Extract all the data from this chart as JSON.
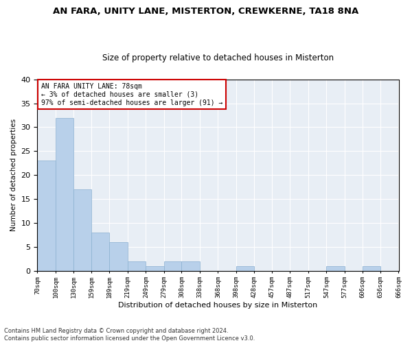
{
  "title1": "AN FARA, UNITY LANE, MISTERTON, CREWKERNE, TA18 8NA",
  "title2": "Size of property relative to detached houses in Misterton",
  "xlabel": "Distribution of detached houses by size in Misterton",
  "ylabel": "Number of detached properties",
  "bar_values": [
    23,
    32,
    17,
    8,
    6,
    2,
    1,
    2,
    2,
    0,
    0,
    1,
    0,
    0,
    0,
    0,
    1,
    0,
    1,
    0
  ],
  "bin_labels": [
    "70sqm",
    "100sqm",
    "130sqm",
    "159sqm",
    "189sqm",
    "219sqm",
    "249sqm",
    "279sqm",
    "308sqm",
    "338sqm",
    "368sqm",
    "398sqm",
    "428sqm",
    "457sqm",
    "487sqm",
    "517sqm",
    "547sqm",
    "577sqm",
    "606sqm",
    "636sqm",
    "666sqm"
  ],
  "bar_color": "#b8d0ea",
  "bar_edge_color": "#8ab0d0",
  "annotation_box_color": "#cc0000",
  "annotation_text": "AN FARA UNITY LANE: 78sqm\n← 3% of detached houses are smaller (3)\n97% of semi-detached houses are larger (91) →",
  "highlight_bar_color": "#cc0000",
  "ylim": [
    0,
    40
  ],
  "yticks": [
    0,
    5,
    10,
    15,
    20,
    25,
    30,
    35,
    40
  ],
  "footer": "Contains HM Land Registry data © Crown copyright and database right 2024.\nContains public sector information licensed under the Open Government Licence v3.0.",
  "bg_color": "#e8eef5",
  "grid_color": "#ffffff",
  "title_fontsize": 9.5,
  "subtitle_fontsize": 8.5
}
